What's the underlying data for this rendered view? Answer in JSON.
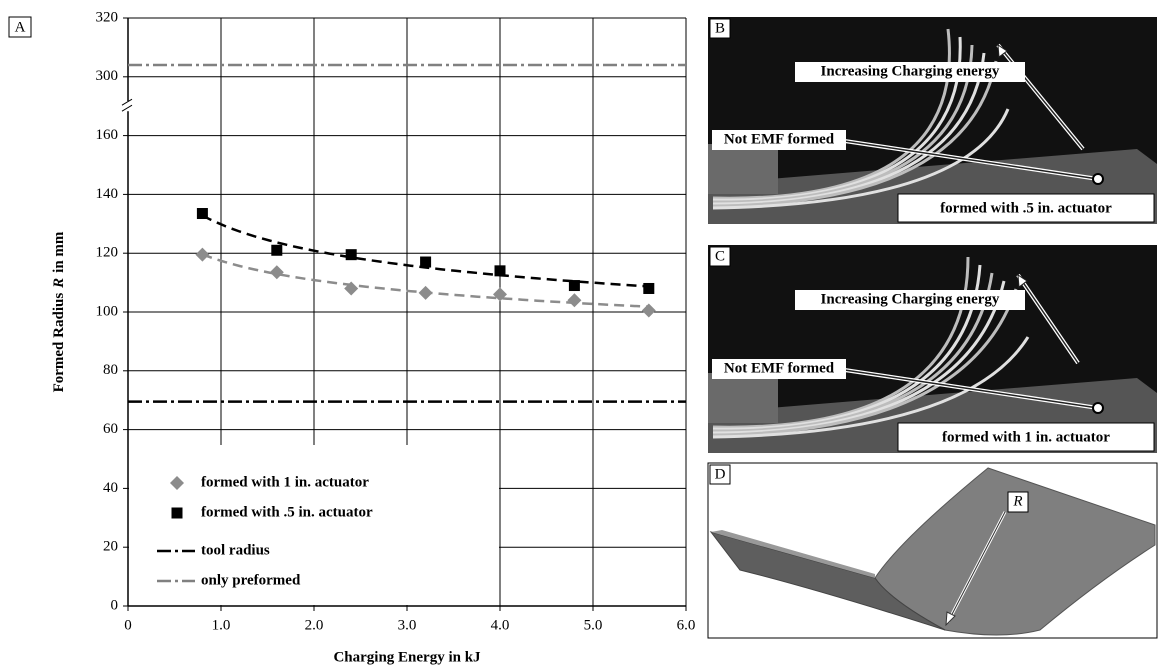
{
  "panel_label": "A",
  "chart_data": {
    "type": "scatter",
    "xlabel": "Charging Energy in kJ",
    "ylabel_parts": [
      "Formed Radius",
      "R",
      "in mm"
    ],
    "xlim": [
      0,
      6
    ],
    "xticks": [
      0,
      {
        "value": 1,
        "label": "1.0"
      },
      {
        "value": 2,
        "label": "2.0"
      },
      {
        "value": 3,
        "label": "3.0"
      },
      {
        "value": 4,
        "label": "4.0"
      },
      {
        "value": 5,
        "label": "5.0"
      },
      {
        "value": 6,
        "label": "6.0"
      }
    ],
    "ylim": [
      0,
      320
    ],
    "yticks": [
      0,
      20,
      40,
      60,
      80,
      100,
      120,
      140,
      160,
      300,
      320
    ],
    "y_break": [
      160,
      300
    ],
    "grid": true,
    "trendline": "power",
    "legend": "lower left",
    "series": [
      {
        "name": "formed with 1 in. actuator",
        "marker": "diamond",
        "color": "#8c8c8c",
        "x": [
          0.8,
          1.6,
          2.4,
          3.2,
          4.0,
          4.8,
          5.6
        ],
        "values": [
          119.5,
          113.5,
          108,
          106.5,
          106,
          104,
          100.5
        ]
      },
      {
        "name": "formed with .5 in. actuator",
        "marker": "square",
        "color": "#000000",
        "x": [
          0.8,
          1.6,
          2.4,
          3.2,
          4.0,
          4.8,
          5.6
        ],
        "values": [
          133.5,
          121,
          119.5,
          117,
          114,
          109,
          108
        ]
      }
    ],
    "reference_lines": [
      {
        "name": "tool radius",
        "value": 69.5,
        "color": "#000000"
      },
      {
        "name": "only preformed",
        "value": 304,
        "color": "#808080"
      }
    ]
  },
  "panels": [
    {
      "letter": "B",
      "arrow_label": "Increasing Charging energy",
      "note": "Not EMF formed",
      "caption": "formed with .5 in. actuator"
    },
    {
      "letter": "C",
      "arrow_label": "Increasing Charging energy",
      "note": "Not EMF formed",
      "caption": "formed with 1 in. actuator"
    },
    {
      "letter": "D",
      "symbol": "R"
    }
  ]
}
